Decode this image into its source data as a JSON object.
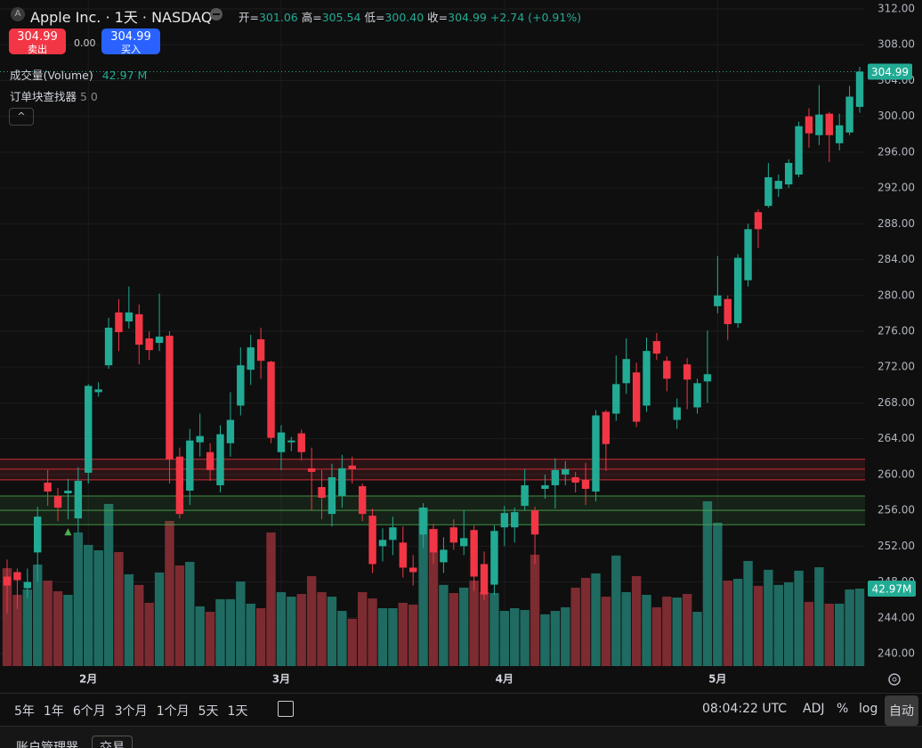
{
  "chart_data": {
    "type": "candlestick",
    "up_color": "#22ab94",
    "down_color": "#f23645",
    "volume_up_color": "#1f6b61",
    "volume_down_color": "#7c2b31",
    "categories": [
      null,
      null,
      null,
      null,
      null,
      null,
      null,
      null,
      "2月",
      null,
      null,
      null,
      null,
      null,
      null,
      null,
      null,
      null,
      null,
      null,
      null,
      null,
      null,
      null,
      null,
      null,
      null,
      "3月",
      null,
      null,
      null,
      null,
      null,
      null,
      null,
      null,
      null,
      null,
      null,
      null,
      null,
      null,
      null,
      null,
      null,
      null,
      null,
      null,
      null,
      "4月",
      null,
      null,
      null,
      null,
      null,
      null,
      null,
      null,
      null,
      null,
      null,
      null,
      null,
      null,
      null,
      null,
      null,
      null,
      null,
      null,
      "5月",
      null,
      null,
      null,
      null,
      null,
      null,
      null,
      null,
      null,
      null,
      null,
      null,
      null,
      null
    ],
    "open": [
      248.6,
      249.1,
      247.3,
      251.3,
      259.1,
      257.6,
      257.9,
      255.1,
      260.2,
      269.2,
      272.2,
      278.1,
      277.1,
      277.9,
      275.2,
      274.7,
      275.5,
      262,
      258.2,
      263.6,
      262.5,
      258.8,
      263.5,
      267.7,
      271.7,
      275.1,
      272.6,
      262.5,
      263.6,
      264.6,
      260.7,
      258.6,
      255.6,
      257.6,
      261.0,
      258.7,
      255.4,
      252.0,
      252.7,
      252.4,
      249.6,
      253.3,
      253.9,
      250.2,
      254.1,
      252,
      253.8,
      250,
      247.7,
      254.1,
      254.1,
      256.5,
      256,
      258.4,
      258.8,
      260,
      259.7,
      259.4,
      258.1,
      267,
      266.8,
      270.2,
      271.4,
      267.7,
      274.9,
      272.7,
      266.1,
      272.3,
      267.5,
      270.4,
      278.8,
      279.6,
      276.9,
      281.7,
      289.3,
      290,
      291.9,
      292.4,
      293.5,
      300,
      297.9,
      300.3,
      297,
      298.2,
      301.06
    ],
    "high": [
      250.5,
      249.5,
      249.5,
      256.4,
      260.5,
      258.5,
      259.5,
      260.8,
      270.1,
      270.3,
      277.5,
      279.6,
      281,
      279,
      276,
      280.2,
      276,
      263,
      265.1,
      266.8,
      263.5,
      265.5,
      269.2,
      274.2,
      275.6,
      276.4,
      272.7,
      265.5,
      264.2,
      265,
      263,
      260.5,
      261.2,
      262.2,
      262,
      259,
      256.2,
      254,
      255.3,
      254.2,
      251,
      256.8,
      254.5,
      253,
      255,
      256,
      254.3,
      251.4,
      254.3,
      256.5,
      256.3,
      260.6,
      256.4,
      260,
      261.8,
      261.5,
      260.3,
      261.3,
      267.2,
      267.2,
      273.3,
      275.2,
      272.5,
      275.3,
      275.8,
      273.2,
      268.5,
      273,
      270.7,
      276.1,
      284.4,
      280,
      284.6,
      288,
      289.6,
      294.8,
      293.5,
      295.2,
      299.4,
      300.9,
      303.5,
      300.5,
      300.3,
      303.4,
      305.54
    ],
    "low": [
      244.5,
      245,
      246.2,
      248,
      256.5,
      254.8,
      255,
      253.5,
      259,
      268.7,
      271.8,
      273.8,
      276.3,
      272.3,
      272.8,
      273.8,
      259,
      255.1,
      256.6,
      262,
      259.3,
      258,
      262,
      266.6,
      270,
      270.7,
      263.5,
      260.5,
      262.6,
      261.6,
      256,
      255,
      254.2,
      256.3,
      259,
      254.8,
      249,
      250.3,
      251,
      248.5,
      247.6,
      251.8,
      250,
      249,
      251.6,
      251,
      247,
      246,
      246.5,
      252,
      252.4,
      256,
      250,
      257.3,
      256.2,
      258.8,
      258,
      256.6,
      257,
      260.4,
      266,
      269,
      265.3,
      267,
      272.8,
      269.3,
      265.1,
      267.3,
      266.8,
      268,
      278,
      275,
      276.4,
      281,
      285.3,
      289.8,
      291,
      292,
      293.2,
      296.5,
      296.8,
      294.9,
      296.2,
      297.9,
      300.4
    ],
    "close": [
      247.6,
      248.2,
      248.0,
      255.3,
      258.1,
      256.3,
      258.2,
      259.3,
      269.9,
      269.5,
      276.4,
      275.9,
      278.1,
      274.5,
      273.9,
      275.4,
      261.7,
      255.6,
      263.8,
      264.3,
      260.5,
      264.5,
      266.1,
      272.2,
      274.2,
      272.7,
      264.1,
      264.7,
      263.8,
      262.5,
      260.3,
      257.4,
      259.7,
      260.7,
      260.6,
      255.6,
      250.0,
      252.7,
      254.1,
      249.6,
      249.1,
      256.3,
      251.3,
      251.6,
      252.4,
      252.9,
      248.6,
      246.6,
      253.7,
      255.7,
      255.8,
      258.8,
      253.3,
      258.8,
      260.5,
      260.6,
      259.1,
      258.4,
      266.6,
      263.4,
      270.1,
      272.9,
      265.9,
      273.8,
      273.5,
      270.7,
      267.5,
      270.6,
      270.2,
      271.2,
      280,
      276.8,
      284.2,
      287.4,
      287.4,
      293.2,
      292.8,
      294.8,
      298.9,
      298.1,
      300.2,
      297.9,
      299,
      302.2,
      304.99
    ],
    "volume": [
      54.3,
      39.5,
      42.5,
      56.3,
      47.4,
      41.5,
      39.5,
      74.1,
      67.2,
      64.2,
      89.9,
      63.2,
      50.9,
      45.0,
      35.1,
      51.9,
      80.5,
      55.8,
      57.8,
      33.1,
      30.1,
      37.1,
      37.1,
      46.9,
      34.6,
      32.1,
      74.1,
      41.0,
      38.5,
      40.0,
      49.9,
      41.0,
      38.5,
      30.6,
      26.2,
      41.0,
      37.5,
      32.1,
      32.1,
      35.1,
      34.1,
      87.9,
      76.1,
      45.0,
      40.5,
      43.5,
      47.4,
      41.0,
      40.5,
      30.6,
      32.1,
      31.1,
      61.8,
      28.7,
      30.6,
      32.6,
      43.5,
      48.9,
      51.4,
      38.5,
      61.3,
      41.0,
      49.9,
      39.5,
      32.6,
      38.5,
      38.0,
      40.0,
      30.1,
      91.4,
      79.5,
      47.4,
      48.4,
      58.3,
      44.5,
      53.4,
      45.0,
      46.4,
      52.9,
      35.6,
      54.8,
      34.6,
      34.6,
      42.5,
      42.97
    ],
    "volume_tag": "42.97M",
    "ylim": [
      240,
      312
    ],
    "yticks": [
      {
        "value": 240,
        "label": "240.00"
      },
      {
        "value": 244,
        "label": "244.00"
      },
      {
        "value": 248,
        "label": "248.00"
      },
      {
        "value": 252,
        "label": "252.00"
      },
      {
        "value": 256,
        "label": "256.00"
      },
      {
        "value": 260,
        "label": "260.00"
      },
      {
        "value": 264,
        "label": "264.00"
      },
      {
        "value": 268,
        "label": "268.00"
      },
      {
        "value": 272,
        "label": "272.00"
      },
      {
        "value": 276,
        "label": "276.00"
      },
      {
        "value": 280,
        "label": "280.00"
      },
      {
        "value": 284,
        "label": "284.00"
      },
      {
        "value": 288,
        "label": "288.00"
      },
      {
        "value": 292,
        "label": "292.00"
      },
      {
        "value": 296,
        "label": "296.00"
      },
      {
        "value": 300,
        "label": "300.00"
      },
      {
        "value": 304,
        "label": "304.00"
      },
      {
        "value": 308,
        "label": "308.00"
      },
      {
        "value": 312,
        "label": "312.00"
      }
    ],
    "grid": true,
    "zones": [
      {
        "top": 261.7,
        "mid": 260.6,
        "bottom": 259.4,
        "color": "#f23645"
      },
      {
        "top": 257.6,
        "mid": 256.0,
        "bottom": 254.4,
        "color": "#4caf50"
      }
    ],
    "signals": [
      {
        "index": 6,
        "price": 253.6,
        "color": "#4caf50"
      }
    ]
  },
  "ui": {
    "header": {
      "title": "Apple Inc. · 1天 · NASDAQ",
      "open_label": "开=",
      "open": "301.06",
      "high_label": "高=",
      "high": "305.54",
      "low_label": "低=",
      "low": "300.40",
      "close_label": "收=",
      "close": "304.99",
      "change": "+2.74 (+0.91%)"
    },
    "trade": {
      "sell_price": "304.99",
      "sell_label": "卖出",
      "spread": "0.00",
      "buy_price": "304.99",
      "buy_label": "买入"
    },
    "legend": {
      "volume_name": "成交量(Volume)",
      "volume_value": "42.97 M",
      "indicator_name": "订单块查找器",
      "indicator_params": "5 0"
    },
    "toolbar": {
      "ranges": [
        "5年",
        "1年",
        "6个月",
        "3个月",
        "1个月",
        "5天",
        "1天"
      ],
      "time": "08:04:22 UTC",
      "adj": "ADJ",
      "percent": "%",
      "log": "log",
      "auto": "自动"
    },
    "bottom": {
      "account_manager": "账户管理器",
      "trade": "交易"
    }
  }
}
